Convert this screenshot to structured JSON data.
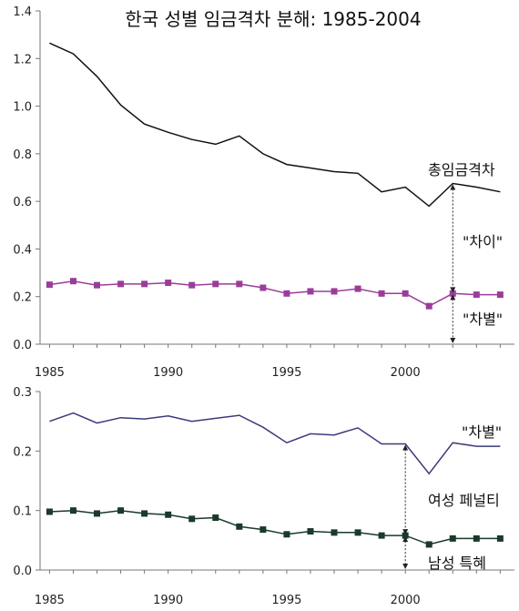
{
  "chart_data": [
    {
      "type": "line",
      "title": "한국 성별 임금격차 분해: 1985-2004",
      "xlabel": "",
      "ylabel": "",
      "x": [
        1985,
        1986,
        1987,
        1988,
        1989,
        1990,
        1991,
        1992,
        1993,
        1994,
        1995,
        1996,
        1997,
        1998,
        1999,
        2000,
        2001,
        2002,
        2003,
        2004
      ],
      "xticks": [
        "1985",
        "1990",
        "1995",
        "2000"
      ],
      "yticks": [
        "0.0",
        "0.2",
        "0.4",
        "0.6",
        "0.8",
        "1.0",
        "1.2",
        "1.4"
      ],
      "ylim": [
        0,
        1.4
      ],
      "xlim": [
        1984.6,
        2004.6
      ],
      "series": [
        {
          "name": "총임금격차",
          "color": "#111111",
          "marker": "none",
          "values": [
            1.265,
            1.22,
            1.125,
            1.005,
            0.925,
            0.89,
            0.86,
            0.84,
            0.875,
            0.8,
            0.755,
            0.74,
            0.725,
            0.718,
            0.64,
            0.66,
            0.58,
            0.675,
            0.66,
            0.64
          ]
        },
        {
          "name": "\"차별\"",
          "color": "#9a3d9a",
          "marker": "square",
          "values": [
            0.25,
            0.265,
            0.248,
            0.253,
            0.253,
            0.258,
            0.248,
            0.253,
            0.253,
            0.237,
            0.213,
            0.222,
            0.222,
            0.233,
            0.213,
            0.213,
            0.16,
            0.213,
            0.208,
            0.208
          ]
        }
      ],
      "annotations": [
        {
          "text": "총임금격차",
          "x": 2003,
          "y": 0.72
        },
        {
          "text": "\"차이\"",
          "x": 2003,
          "y": 0.42
        },
        {
          "text": "\"차별\"",
          "x": 2003,
          "y": 0.1
        }
      ],
      "arrows": [
        {
          "x": 2002,
          "y_from": 0.675,
          "y_to": 0.213
        },
        {
          "x": 2002,
          "y_from": 0.213,
          "y_to": 0.0
        }
      ],
      "grid": false,
      "legend": "none"
    },
    {
      "type": "line",
      "title": "",
      "xlabel": "",
      "ylabel": "",
      "x": [
        1985,
        1986,
        1987,
        1988,
        1989,
        1990,
        1991,
        1992,
        1993,
        1994,
        1995,
        1996,
        1997,
        1998,
        1999,
        2000,
        2001,
        2002,
        2003,
        2004
      ],
      "xticks": [
        "1985",
        "1990",
        "1995",
        "2000"
      ],
      "yticks": [
        "0.0",
        "0.1",
        "0.2",
        "0.3"
      ],
      "ylim": [
        0,
        0.3
      ],
      "xlim": [
        1984.6,
        2004.6
      ],
      "series": [
        {
          "name": "\"차별\"",
          "color": "#3a3a7a",
          "marker": "none",
          "values": [
            0.25,
            0.264,
            0.247,
            0.256,
            0.254,
            0.259,
            0.25,
            0.255,
            0.26,
            0.24,
            0.214,
            0.229,
            0.227,
            0.239,
            0.212,
            0.212,
            0.162,
            0.214,
            0.208,
            0.208
          ]
        },
        {
          "name": "남성 특혜",
          "color": "#1a3a2a",
          "marker": "square",
          "values": [
            0.098,
            0.1,
            0.095,
            0.1,
            0.095,
            0.093,
            0.086,
            0.088,
            0.073,
            0.068,
            0.06,
            0.065,
            0.063,
            0.063,
            0.058,
            0.058,
            0.043,
            0.053,
            0.053,
            0.053
          ]
        }
      ],
      "annotations": [
        {
          "text": "\"차별\"",
          "x": 2003,
          "y": 0.228
        },
        {
          "text": "여성 페널티",
          "x": 2002,
          "y": 0.11
        },
        {
          "text": "남성 특혜",
          "x": 2002,
          "y": 0.013
        }
      ],
      "arrows": [
        {
          "x": 2000,
          "y_from": 0.212,
          "y_to": 0.058
        },
        {
          "x": 2000,
          "y_from": 0.058,
          "y_to": 0.0
        }
      ],
      "grid": false,
      "legend": "none"
    }
  ]
}
